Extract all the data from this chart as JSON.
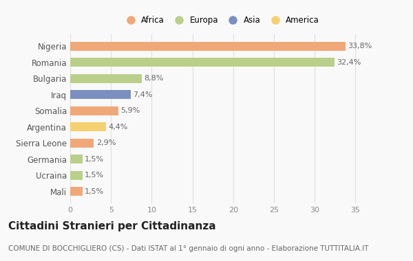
{
  "countries": [
    "Nigeria",
    "Romania",
    "Bulgaria",
    "Iraq",
    "Somalia",
    "Argentina",
    "Sierra Leone",
    "Germania",
    "Ucraina",
    "Mali"
  ],
  "values": [
    33.8,
    32.4,
    8.8,
    7.4,
    5.9,
    4.4,
    2.9,
    1.5,
    1.5,
    1.5
  ],
  "labels": [
    "33,8%",
    "32,4%",
    "8,8%",
    "7,4%",
    "5,9%",
    "4,4%",
    "2,9%",
    "1,5%",
    "1,5%",
    "1,5%"
  ],
  "colors": [
    "#F0A878",
    "#BACF8A",
    "#BACF8A",
    "#7B8FC0",
    "#F0A878",
    "#F5D070",
    "#F0A878",
    "#BACF8A",
    "#BACF8A",
    "#F0A878"
  ],
  "continents": [
    "Africa",
    "Europa",
    "Asia",
    "America"
  ],
  "legend_colors": [
    "#F0A878",
    "#BACF8A",
    "#7B8FC0",
    "#F5D070"
  ],
  "title": "Cittadini Stranieri per Cittadinanza",
  "subtitle": "COMUNE DI BOCCHIGLIERO (CS) - Dati ISTAT al 1° gennaio di ogni anno - Elaborazione TUTTITALIA.IT",
  "xlim": [
    0,
    37
  ],
  "xticks": [
    0,
    5,
    10,
    15,
    20,
    25,
    30,
    35
  ],
  "bg_color": "#f9f9f9",
  "grid_color": "#e0e0e0",
  "label_fontsize": 8,
  "ytick_fontsize": 8.5,
  "xtick_fontsize": 8,
  "title_fontsize": 11,
  "subtitle_fontsize": 7.5,
  "bar_height": 0.55
}
